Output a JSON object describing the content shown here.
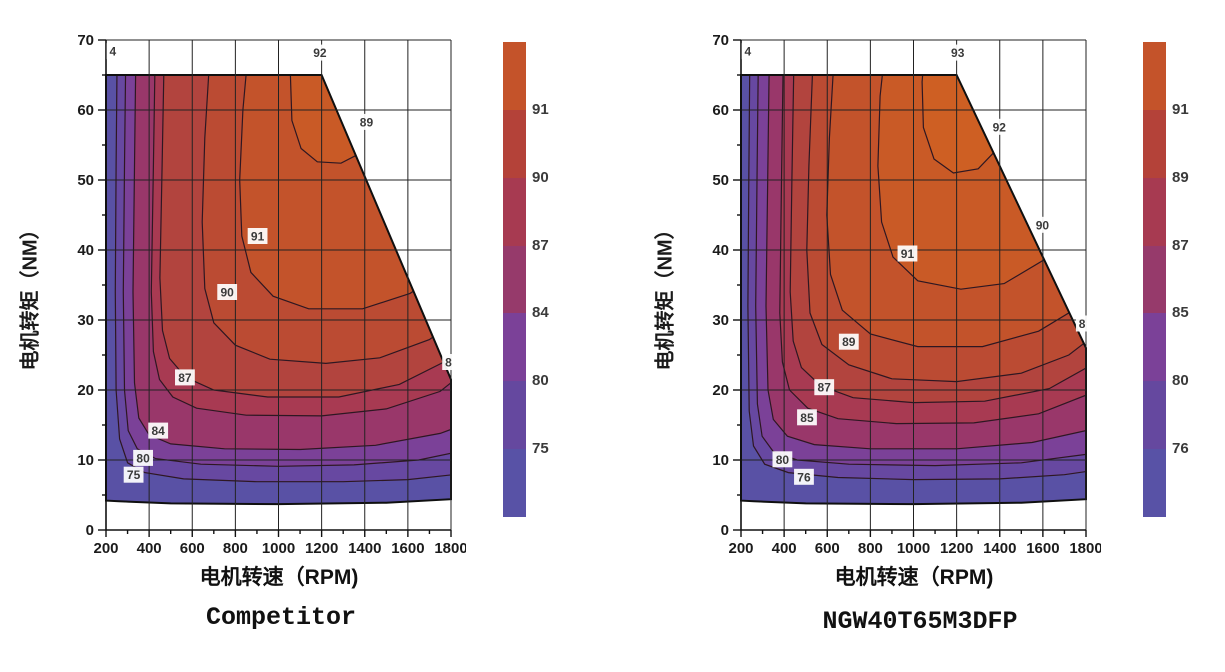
{
  "page": {
    "background": "#ffffff"
  },
  "chart_data": [
    {
      "type": "contour",
      "caption": "Competitor",
      "xlabel": "电机转速（RPM)",
      "ylabel": "电机转矩（NM）",
      "x_range": [
        200,
        1800
      ],
      "y_range": [
        0,
        70
      ],
      "x_ticks": [
        200,
        400,
        600,
        800,
        1000,
        1200,
        1400,
        1600,
        1800
      ],
      "y_ticks": [
        0,
        10,
        20,
        30,
        40,
        50,
        60,
        70
      ],
      "x_minor_step": 100,
      "y_minor_step": 5,
      "base_color": "#5951a5",
      "envelope": [
        [
          200,
          4.2
        ],
        [
          200,
          65
        ],
        [
          1200,
          65
        ],
        [
          1800,
          21.5
        ],
        [
          1800,
          4.4
        ],
        [
          1500,
          3.9
        ],
        [
          1000,
          3.7
        ],
        [
          500,
          3.8
        ],
        [
          260,
          4.1
        ]
      ],
      "bands": [
        {
          "level": 75,
          "color": "#6748a1",
          "points": [
            [
              253,
              72
            ],
            [
              247,
              52
            ],
            [
              243,
              34
            ],
            [
              247,
              20
            ],
            [
              263,
              13
            ],
            [
              300,
              9.6
            ],
            [
              380,
              8.2
            ],
            [
              560,
              7.3
            ],
            [
              900,
              6.9
            ],
            [
              1300,
              6.9
            ],
            [
              1600,
              7.2
            ],
            [
              1900,
              8.2
            ]
          ]
        },
        {
          "level": 80,
          "color": "#7b4198",
          "points": [
            [
              293,
              72
            ],
            [
              286,
              52
            ],
            [
              280,
              34
            ],
            [
              286,
              20
            ],
            [
              303,
              14.2
            ],
            [
              345,
              11.6
            ],
            [
              430,
              10.2
            ],
            [
              640,
              9.4
            ],
            [
              1000,
              9.1
            ],
            [
              1350,
              9.3
            ],
            [
              1650,
              10
            ],
            [
              1900,
              11.6
            ]
          ]
        },
        {
          "level": 84,
          "color": "#99376a",
          "points": [
            [
              340,
              72
            ],
            [
              332,
              52
            ],
            [
              325,
              34
            ],
            [
              332,
              21
            ],
            [
              352,
              16
            ],
            [
              400,
              13.6
            ],
            [
              500,
              12.3
            ],
            [
              750,
              11.6
            ],
            [
              1100,
              11.5
            ],
            [
              1450,
              12.1
            ],
            [
              1750,
              13.8
            ],
            [
              1900,
              15.5
            ]
          ]
        },
        {
          "level": 87,
          "color": "#a83a52",
          "points": [
            [
              430,
              72
            ],
            [
              420,
              52
            ],
            [
              410,
              34
            ],
            [
              420,
              25.5
            ],
            [
              448,
              21.5
            ],
            [
              510,
              19
            ],
            [
              620,
              17.4
            ],
            [
              850,
              16.4
            ],
            [
              1200,
              16.3
            ],
            [
              1500,
              17.3
            ],
            [
              1750,
              19.8
            ],
            [
              1900,
              23.5
            ]
          ]
        },
        {
          "level": 89,
          "color": "#b2443e",
          "points": [
            [
              472,
              72
            ],
            [
              460,
              52
            ],
            [
              450,
              36
            ],
            [
              462,
              28.5
            ],
            [
              495,
              24.5
            ],
            [
              570,
              21.8
            ],
            [
              700,
              20
            ],
            [
              950,
              19
            ],
            [
              1280,
              19
            ],
            [
              1560,
              20.8
            ],
            [
              1800,
              24.5
            ],
            [
              1900,
              28
            ]
          ]
        },
        {
          "level": 90,
          "color": "#bb4b33",
          "points": [
            [
              690,
              72
            ],
            [
              658,
              56
            ],
            [
              646,
              44
            ],
            [
              658,
              34.5
            ],
            [
              700,
              29.6
            ],
            [
              800,
              26.4
            ],
            [
              960,
              24.4
            ],
            [
              1220,
              23.8
            ],
            [
              1470,
              24.6
            ],
            [
              1700,
              27.2
            ],
            [
              1880,
              31.2
            ],
            [
              1900,
              32
            ]
          ]
        },
        {
          "level": 91,
          "color": "#c3532b",
          "points": [
            [
              870,
              72
            ],
            [
              835,
              60
            ],
            [
              820,
              50
            ],
            [
              830,
              42
            ],
            [
              872,
              36.8
            ],
            [
              975,
              33.4
            ],
            [
              1140,
              31.6
            ],
            [
              1390,
              31.6
            ],
            [
              1610,
              33.8
            ],
            [
              1810,
              37.8
            ],
            [
              1900,
              40.5
            ]
          ]
        },
        {
          "level": 92,
          "color": "#c95a26",
          "points": [
            [
              1075,
              72
            ],
            [
              1055,
              65
            ],
            [
              1062,
              58.5
            ],
            [
              1105,
              54.5
            ],
            [
              1180,
              52.6
            ],
            [
              1290,
              52.4
            ],
            [
              1390,
              54
            ],
            [
              1455,
              57.5
            ],
            [
              1472,
              62.5
            ],
            [
              1465,
              68
            ],
            [
              1458,
              72
            ]
          ]
        }
      ],
      "labels": [
        {
          "text": "4",
          "x": 232,
          "y": 68.4
        },
        {
          "text": "92",
          "x": 1192,
          "y": 68.2
        },
        {
          "text": "89",
          "x": 1408,
          "y": 58.3
        },
        {
          "text": "91",
          "x": 903,
          "y": 42
        },
        {
          "text": "90",
          "x": 762,
          "y": 34
        },
        {
          "text": "87",
          "x": 566,
          "y": 21.8
        },
        {
          "text": "84",
          "x": 442,
          "y": 14.2
        },
        {
          "text": "80",
          "x": 372,
          "y": 10.3
        },
        {
          "text": "75",
          "x": 328,
          "y": 7.9
        },
        {
          "text": "8",
          "x": 1788,
          "y": 24
        }
      ],
      "colorbar": {
        "colors": [
          "#c4532a",
          "#b44239",
          "#a73a51",
          "#963a6b",
          "#7b4198",
          "#65489f",
          "#5852a6"
        ],
        "tick_labels": [
          "91",
          "90",
          "87",
          "84",
          "80",
          "75"
        ]
      }
    },
    {
      "type": "contour",
      "caption": "NGW40T65M3DFP",
      "xlabel": "电机转速（RPM)",
      "ylabel": "电机转矩（NM）",
      "x_range": [
        200,
        1800
      ],
      "y_range": [
        0,
        70
      ],
      "x_ticks": [
        200,
        400,
        600,
        800,
        1000,
        1200,
        1400,
        1600,
        1800
      ],
      "y_ticks": [
        0,
        10,
        20,
        30,
        40,
        50,
        60,
        70
      ],
      "x_minor_step": 100,
      "y_minor_step": 5,
      "base_color": "#5951a5",
      "envelope": [
        [
          200,
          4.2
        ],
        [
          200,
          65
        ],
        [
          1200,
          65
        ],
        [
          1800,
          26
        ],
        [
          1800,
          4.4
        ],
        [
          1500,
          3.9
        ],
        [
          1000,
          3.7
        ],
        [
          500,
          3.8
        ],
        [
          260,
          4.1
        ]
      ],
      "bands": [
        {
          "level": 76,
          "color": "#6748a1",
          "points": [
            [
              242,
              72
            ],
            [
              236,
              50
            ],
            [
              232,
              32
            ],
            [
              238,
              17
            ],
            [
              258,
              12
            ],
            [
              310,
              9.4
            ],
            [
              420,
              8.2
            ],
            [
              650,
              7.5
            ],
            [
              1000,
              7.2
            ],
            [
              1400,
              7.3
            ],
            [
              1700,
              7.9
            ],
            [
              1900,
              8.8
            ]
          ]
        },
        {
          "level": 80,
          "color": "#7b4198",
          "points": [
            [
              282,
              72
            ],
            [
              274,
              50
            ],
            [
              268,
              32
            ],
            [
              276,
              18
            ],
            [
              298,
              13.4
            ],
            [
              350,
              11.2
            ],
            [
              460,
              10
            ],
            [
              700,
              9.4
            ],
            [
              1100,
              9.2
            ],
            [
              1500,
              9.6
            ],
            [
              1800,
              10.8
            ],
            [
              1900,
              12
            ]
          ]
        },
        {
          "level": 85,
          "color": "#99376a",
          "points": [
            [
              333,
              72
            ],
            [
              324,
              50
            ],
            [
              316,
              32
            ],
            [
              325,
              20
            ],
            [
              350,
              15.8
            ],
            [
              415,
              13.4
            ],
            [
              540,
              12.2
            ],
            [
              800,
              11.6
            ],
            [
              1200,
              11.6
            ],
            [
              1550,
              12.5
            ],
            [
              1800,
              14.2
            ],
            [
              1900,
              16.5
            ]
          ]
        },
        {
          "level": 87,
          "color": "#a83a52",
          "points": [
            [
              398,
              72
            ],
            [
              388,
              50
            ],
            [
              380,
              31
            ],
            [
              392,
              24
            ],
            [
              425,
              20
            ],
            [
              510,
              17.4
            ],
            [
              650,
              15.9
            ],
            [
              920,
              15.2
            ],
            [
              1280,
              15.3
            ],
            [
              1580,
              16.6
            ],
            [
              1820,
              19.5
            ],
            [
              1900,
              22.5
            ]
          ]
        },
        {
          "level": 89,
          "color": "#b2443e",
          "points": [
            [
              448,
              72
            ],
            [
              436,
              50
            ],
            [
              428,
              34
            ],
            [
              442,
              27
            ],
            [
              480,
              23.2
            ],
            [
              570,
              20.6
            ],
            [
              720,
              18.9
            ],
            [
              1000,
              18.2
            ],
            [
              1330,
              18.4
            ],
            [
              1630,
              20.2
            ],
            [
              1850,
              24
            ],
            [
              1900,
              26.5
            ]
          ]
        },
        {
          "level": 90,
          "color": "#bb4b33",
          "points": [
            [
              540,
              72
            ],
            [
              515,
              52
            ],
            [
              505,
              40
            ],
            [
              520,
              31
            ],
            [
              575,
              26.5
            ],
            [
              700,
              23.6
            ],
            [
              900,
              21.6
            ],
            [
              1200,
              21.2
            ],
            [
              1500,
              22.4
            ],
            [
              1720,
              25
            ],
            [
              1880,
              28.8
            ],
            [
              1900,
              29.5
            ]
          ]
        },
        {
          "level": 91,
          "color": "#c3532b",
          "points": [
            [
              640,
              72
            ],
            [
              610,
              56
            ],
            [
              598,
              45
            ],
            [
              615,
              36.5
            ],
            [
              670,
              31.4
            ],
            [
              800,
              28
            ],
            [
              1020,
              26.2
            ],
            [
              1320,
              26.2
            ],
            [
              1580,
              28.4
            ],
            [
              1800,
              32.5
            ],
            [
              1900,
              36
            ]
          ]
        },
        {
          "level": 92,
          "color": "#c95a26",
          "points": [
            [
              880,
              72
            ],
            [
              845,
              62
            ],
            [
              835,
              52
            ],
            [
              852,
              44
            ],
            [
              905,
              39
            ],
            [
              1020,
              35.6
            ],
            [
              1220,
              34.4
            ],
            [
              1420,
              35.2
            ],
            [
              1600,
              38.5
            ],
            [
              1760,
              44
            ],
            [
              1860,
              50
            ],
            [
              1900,
              53
            ]
          ]
        },
        {
          "level": 93,
          "color": "#ce5f23",
          "points": [
            [
              1060,
              72
            ],
            [
              1040,
              64
            ],
            [
              1046,
              57.5
            ],
            [
              1095,
              53
            ],
            [
              1185,
              51
            ],
            [
              1300,
              51.6
            ],
            [
              1390,
              54.5
            ],
            [
              1440,
              59
            ],
            [
              1448,
              65
            ],
            [
              1442,
              72
            ]
          ]
        }
      ],
      "labels": [
        {
          "text": "4",
          "x": 232,
          "y": 68.4
        },
        {
          "text": "93",
          "x": 1205,
          "y": 68.2
        },
        {
          "text": "92",
          "x": 1398,
          "y": 57.6
        },
        {
          "text": "90",
          "x": 1598,
          "y": 43.6
        },
        {
          "text": "91",
          "x": 972,
          "y": 39.5
        },
        {
          "text": "89",
          "x": 700,
          "y": 26.9
        },
        {
          "text": "87",
          "x": 586,
          "y": 20.4
        },
        {
          "text": "85",
          "x": 506,
          "y": 16.1
        },
        {
          "text": "80",
          "x": 392,
          "y": 10.1
        },
        {
          "text": "76",
          "x": 492,
          "y": 7.6
        },
        {
          "text": "8",
          "x": 1782,
          "y": 29.5
        }
      ],
      "colorbar": {
        "colors": [
          "#c4532a",
          "#b44239",
          "#a73a51",
          "#963a6b",
          "#7b4198",
          "#65489f",
          "#5852a6"
        ],
        "tick_labels": [
          "91",
          "89",
          "87",
          "85",
          "80",
          "76"
        ]
      }
    }
  ]
}
